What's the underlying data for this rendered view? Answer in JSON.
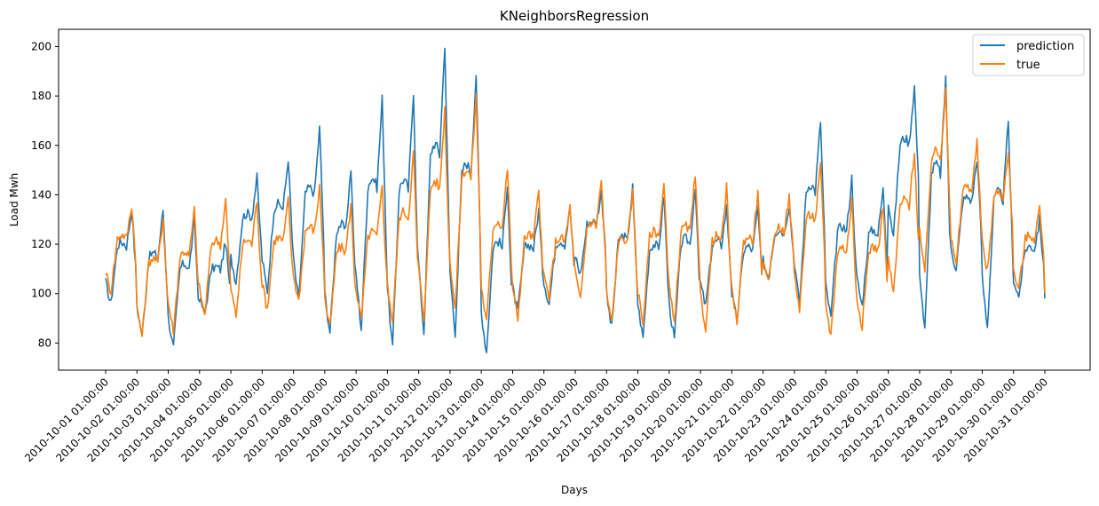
{
  "chart_data": {
    "type": "line",
    "title": "KNeighborsRegression",
    "xlabel": "Days",
    "ylabel": "Load Mwh",
    "ylim": [
      69,
      207
    ],
    "yticks": [
      80,
      100,
      120,
      140,
      160,
      180,
      200
    ],
    "grid": false,
    "legend_position": "top-right",
    "x": [
      "2010-10-01 01:00:00",
      "2010-10-02 01:00:00",
      "2010-10-03 01:00:00",
      "2010-10-04 01:00:00",
      "2010-10-05 01:00:00",
      "2010-10-06 01:00:00",
      "2010-10-07 01:00:00",
      "2010-10-08 01:00:00",
      "2010-10-09 01:00:00",
      "2010-10-10 01:00:00",
      "2010-10-11 01:00:00",
      "2010-10-12 01:00:00",
      "2010-10-13 01:00:00",
      "2010-10-14 01:00:00",
      "2010-10-15 01:00:00",
      "2010-10-16 01:00:00",
      "2010-10-17 01:00:00",
      "2010-10-18 01:00:00",
      "2010-10-19 01:00:00",
      "2010-10-20 01:00:00",
      "2010-10-21 01:00:00",
      "2010-10-22 01:00:00",
      "2010-10-23 01:00:00",
      "2010-10-24 01:00:00",
      "2010-10-25 01:00:00",
      "2010-10-26 01:00:00",
      "2010-10-27 01:00:00",
      "2010-10-28 01:00:00",
      "2010-10-29 01:00:00",
      "2010-10-30 01:00:00",
      "2010-10-31 01:00:00"
    ],
    "day_extrema_note": "each day: [min, max] approximate",
    "series": [
      {
        "name": "prediction",
        "color": "#1f77b4",
        "daily_min": [
          95,
          82,
          77,
          91,
          104,
          100,
          96,
          83,
          84,
          76,
          82,
          82,
          75,
          92,
          95,
          107,
          85,
          81,
          80,
          94,
          88,
          106,
          94,
          89,
          94,
          122,
          83,
          108,
          85,
          98
        ],
        "daily_max": [
          134,
          134,
          130,
          121,
          147,
          155,
          167,
          151,
          179,
          182,
          201,
          189,
          145,
          134,
          135,
          141,
          143,
          140,
          144,
          135,
          135,
          136,
          170,
          147,
          142,
          184,
          188,
          155,
          170,
          130
        ]
      },
      {
        "name": "true",
        "color": "#ff7f0e",
        "daily_min": [
          100,
          82,
          84,
          90,
          90,
          93,
          96,
          85,
          88,
          87,
          88,
          92,
          87,
          89,
          98,
          96,
          87,
          87,
          87,
          85,
          88,
          103,
          93,
          82,
          86,
          99,
          106,
          110,
          108,
          101
        ],
        "daily_max": [
          136,
          131,
          134,
          138,
          138,
          138,
          143,
          136,
          144,
          157,
          175,
          180,
          151,
          142,
          135,
          146,
          141,
          145,
          148,
          143,
          141,
          139,
          152,
          138,
          136,
          158,
          184,
          161,
          158,
          135
        ]
      }
    ]
  }
}
